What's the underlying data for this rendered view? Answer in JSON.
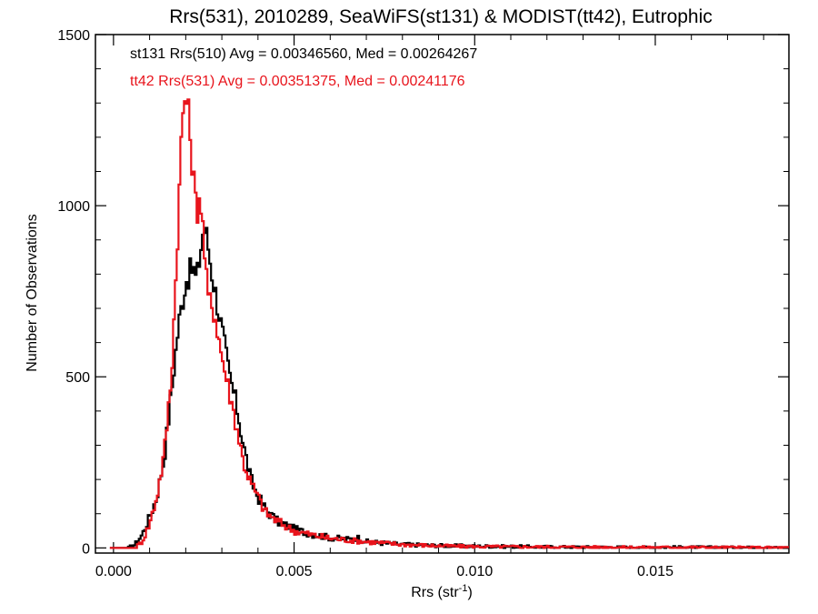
{
  "chart_data": {
    "type": "line",
    "title": "Rrs(531), 2010289, SeaWiFS(st131) & MODIST(tt42), Eutrophic",
    "xlabel": "Rrs (str",
    "xlabel_sup": "-1",
    "xlabel_close": ")",
    "ylabel": "Number of Observations",
    "xlim": [
      -0.0005,
      0.0187
    ],
    "ylim": [
      -15,
      1500
    ],
    "x_ticks": [
      0.0,
      0.005,
      0.01,
      0.015
    ],
    "x_tick_labels": [
      "0.000",
      "0.005",
      "0.010",
      "0.015"
    ],
    "y_ticks": [
      0,
      500,
      1000,
      1500
    ],
    "y_tick_labels": [
      "0",
      "500",
      "1000",
      "1500"
    ],
    "grid": false,
    "legend_position": "top-left",
    "series": [
      {
        "name": "st131 Rrs(510) Avg = 0.00346560, Med = 0.00264267",
        "color": "#000000",
        "points": [
          [
            -0.0001,
            0
          ],
          [
            0.0004,
            0
          ],
          [
            0.0006,
            10
          ],
          [
            0.0008,
            40
          ],
          [
            0.001,
            90
          ],
          [
            0.0012,
            150
          ],
          [
            0.0014,
            260
          ],
          [
            0.0016,
            450
          ],
          [
            0.0018,
            650
          ],
          [
            0.002,
            780
          ],
          [
            0.0022,
            820
          ],
          [
            0.0023,
            780
          ],
          [
            0.0024,
            860
          ],
          [
            0.0025,
            940
          ],
          [
            0.0026,
            900
          ],
          [
            0.0027,
            820
          ],
          [
            0.0028,
            760
          ],
          [
            0.003,
            640
          ],
          [
            0.0032,
            510
          ],
          [
            0.0034,
            420
          ],
          [
            0.0036,
            300
          ],
          [
            0.0038,
            200
          ],
          [
            0.004,
            150
          ],
          [
            0.0042,
            115
          ],
          [
            0.0045,
            80
          ],
          [
            0.005,
            55
          ],
          [
            0.0055,
            40
          ],
          [
            0.006,
            30
          ],
          [
            0.0065,
            25
          ],
          [
            0.0068,
            30
          ],
          [
            0.007,
            18
          ],
          [
            0.008,
            10
          ],
          [
            0.009,
            7
          ],
          [
            0.01,
            5
          ],
          [
            0.012,
            3
          ],
          [
            0.014,
            2
          ],
          [
            0.016,
            2
          ],
          [
            0.0187,
            1
          ]
        ]
      },
      {
        "name": "tt42 Rrs(531) Avg = 0.00351375, Med = 0.00241176",
        "color": "#e8141c",
        "points": [
          [
            -0.0001,
            0
          ],
          [
            0.0006,
            0
          ],
          [
            0.0008,
            20
          ],
          [
            0.001,
            70
          ],
          [
            0.0012,
            150
          ],
          [
            0.0014,
            270
          ],
          [
            0.0016,
            500
          ],
          [
            0.0017,
            720
          ],
          [
            0.0018,
            980
          ],
          [
            0.0019,
            1250
          ],
          [
            0.002,
            1330
          ],
          [
            0.0021,
            1240
          ],
          [
            0.0022,
            1100
          ],
          [
            0.0023,
            980
          ],
          [
            0.0024,
            1040
          ],
          [
            0.0025,
            900
          ],
          [
            0.0026,
            740
          ],
          [
            0.0027,
            710
          ],
          [
            0.0028,
            690
          ],
          [
            0.003,
            560
          ],
          [
            0.0032,
            460
          ],
          [
            0.0034,
            360
          ],
          [
            0.0036,
            250
          ],
          [
            0.0038,
            190
          ],
          [
            0.004,
            150
          ],
          [
            0.0042,
            105
          ],
          [
            0.0045,
            80
          ],
          [
            0.005,
            50
          ],
          [
            0.0055,
            38
          ],
          [
            0.006,
            28
          ],
          [
            0.007,
            18
          ],
          [
            0.008,
            10
          ],
          [
            0.009,
            6
          ],
          [
            0.01,
            4
          ],
          [
            0.012,
            3
          ],
          [
            0.014,
            2
          ],
          [
            0.016,
            2
          ],
          [
            0.0187,
            1
          ]
        ]
      }
    ]
  }
}
